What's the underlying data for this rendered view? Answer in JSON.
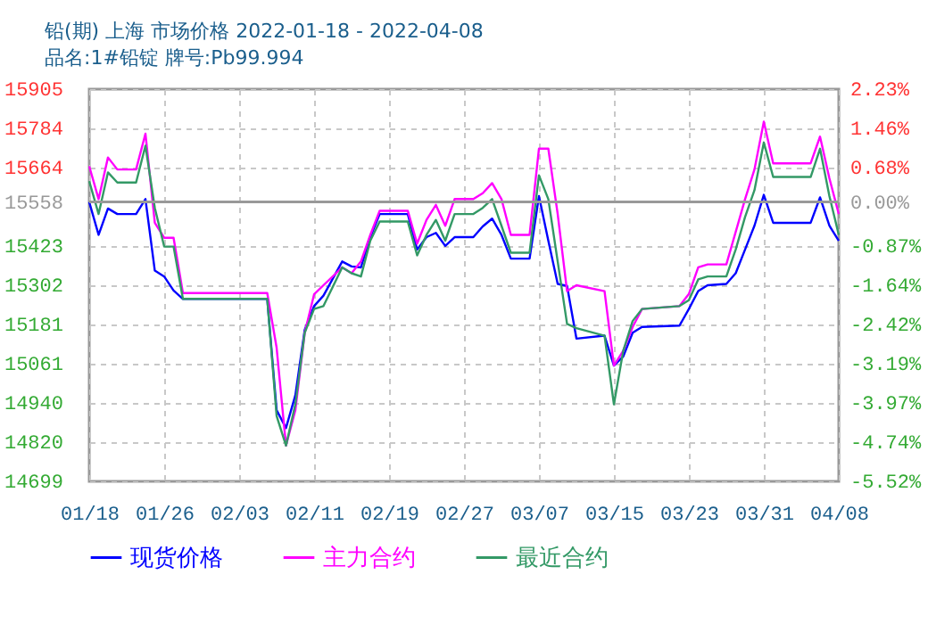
{
  "chart_data": {
    "type": "line",
    "title": "铅(期) 上海 市场价格 2022-01-18 - 2022-04-08",
    "subtitle": "品名:1#铅锭 牌号:Pb99.994",
    "x": [
      "2022-01-18",
      "2022-01-19",
      "2022-01-20",
      "2022-01-21",
      "2022-01-23",
      "2022-01-24",
      "2022-01-25",
      "2022-01-26",
      "2022-01-27",
      "2022-01-28",
      "2022-02-06",
      "2022-02-07",
      "2022-02-08",
      "2022-02-09",
      "2022-02-10",
      "2022-02-11",
      "2022-02-12",
      "2022-02-14",
      "2022-02-15",
      "2022-02-16",
      "2022-02-17",
      "2022-02-18",
      "2022-02-21",
      "2022-02-22",
      "2022-02-23",
      "2022-02-24",
      "2022-02-25",
      "2022-02-26",
      "2022-02-28",
      "2022-03-01",
      "2022-03-02",
      "2022-03-03",
      "2022-03-04",
      "2022-03-06",
      "2022-03-07",
      "2022-03-08",
      "2022-03-09",
      "2022-03-10",
      "2022-03-11",
      "2022-03-14",
      "2022-03-15",
      "2022-03-16",
      "2022-03-17",
      "2022-03-18",
      "2022-03-22",
      "2022-03-23",
      "2022-03-24",
      "2022-03-25",
      "2022-03-27",
      "2022-03-28",
      "2022-03-29",
      "2022-03-30",
      "2022-03-31",
      "2022-04-01",
      "2022-04-05",
      "2022-04-06",
      "2022-04-07",
      "2022-04-08"
    ],
    "series": [
      {
        "name": "现货价格",
        "color": "#0000ff",
        "values": [
          15558,
          15457,
          15538,
          15521,
          15521,
          15567,
          15347,
          15329,
          15286,
          15260,
          15260,
          14918,
          14863,
          14964,
          15165,
          15238,
          15270,
          15375,
          15360,
          15357,
          15450,
          15521,
          15521,
          15412,
          15450,
          15463,
          15423,
          15450,
          15450,
          15483,
          15507,
          15457,
          15384,
          15384,
          15576,
          15439,
          15306,
          15300,
          15138,
          15147,
          15055,
          15083,
          15156,
          15174,
          15178,
          15229,
          15284,
          15302,
          15306,
          15339,
          15412,
          15485,
          15580,
          15494,
          15494,
          15572,
          15485,
          15439
        ]
      },
      {
        "name": "主力合约",
        "color": "#ff00ff",
        "values": [
          15668,
          15567,
          15695,
          15658,
          15658,
          15768,
          15494,
          15448,
          15448,
          15278,
          15278,
          15110,
          14809,
          14918,
          15156,
          15274,
          15302,
          15357,
          15339,
          15375,
          15457,
          15531,
          15531,
          15430,
          15503,
          15549,
          15485,
          15567,
          15567,
          15585,
          15616,
          15567,
          15457,
          15457,
          15722,
          15722,
          15521,
          15284,
          15302,
          15284,
          15055,
          15101,
          15174,
          15229,
          15238,
          15275,
          15357,
          15366,
          15366,
          15466,
          15567,
          15658,
          15805,
          15677,
          15677,
          15759,
          15631,
          15521
        ]
      },
      {
        "name": "最近合约",
        "color": "#339966",
        "values": [
          15622,
          15521,
          15649,
          15618,
          15618,
          15731,
          15540,
          15421,
          15421,
          15260,
          15260,
          14900,
          14809,
          14936,
          15156,
          15229,
          15238,
          15357,
          15339,
          15329,
          15439,
          15498,
          15498,
          15394,
          15457,
          15503,
          15439,
          15521,
          15521,
          15540,
          15567,
          15485,
          15402,
          15402,
          15640,
          15567,
          15375,
          15183,
          15170,
          15147,
          14936,
          15101,
          15192,
          15229,
          15238,
          15256,
          15320,
          15329,
          15329,
          15412,
          15512,
          15594,
          15741,
          15635,
          15635,
          15722,
          15576,
          15457
        ]
      }
    ],
    "xlim": [
      "2022-01-18",
      "2022-04-08"
    ],
    "xticks": [
      {
        "value": "2022-01-18",
        "label": "01/18"
      },
      {
        "value": "2022-01-26",
        "label": "01/26"
      },
      {
        "value": "2022-02-03",
        "label": "02/03"
      },
      {
        "value": "2022-02-11",
        "label": "02/11"
      },
      {
        "value": "2022-02-19",
        "label": "02/19"
      },
      {
        "value": "2022-02-27",
        "label": "02/27"
      },
      {
        "value": "2022-03-07",
        "label": "03/07"
      },
      {
        "value": "2022-03-15",
        "label": "03/15"
      },
      {
        "value": "2022-03-23",
        "label": "03/23"
      },
      {
        "value": "2022-03-31",
        "label": "03/31"
      },
      {
        "value": "2022-04-08",
        "label": "04/08"
      }
    ],
    "ylim": [
      14699,
      15905
    ],
    "yticks": [
      14699,
      14820,
      14940,
      15061,
      15181,
      15302,
      15423,
      15558,
      15664,
      15784,
      15905
    ],
    "y2lim": [
      -5.52,
      2.23
    ],
    "y2ticks": [
      {
        "value": -5.52,
        "label": "-5.52%"
      },
      {
        "value": -4.74,
        "label": "-4.74%"
      },
      {
        "value": -3.97,
        "label": "-3.97%"
      },
      {
        "value": -3.19,
        "label": "-3.19%"
      },
      {
        "value": -2.42,
        "label": "-2.42%"
      },
      {
        "value": -1.64,
        "label": "-1.64%"
      },
      {
        "value": -0.87,
        "label": "-0.87%"
      },
      {
        "value": 0,
        "label": "0.00%"
      },
      {
        "value": 0.68,
        "label": "0.68%"
      },
      {
        "value": 1.46,
        "label": "1.46%"
      },
      {
        "value": 2.23,
        "label": "2.23%"
      }
    ],
    "ref_lines": [
      {
        "axis": "y",
        "value": 15558,
        "color": "#999999"
      }
    ],
    "grid": true,
    "legend": "bottom",
    "marker": "none",
    "line_style": "solid"
  }
}
